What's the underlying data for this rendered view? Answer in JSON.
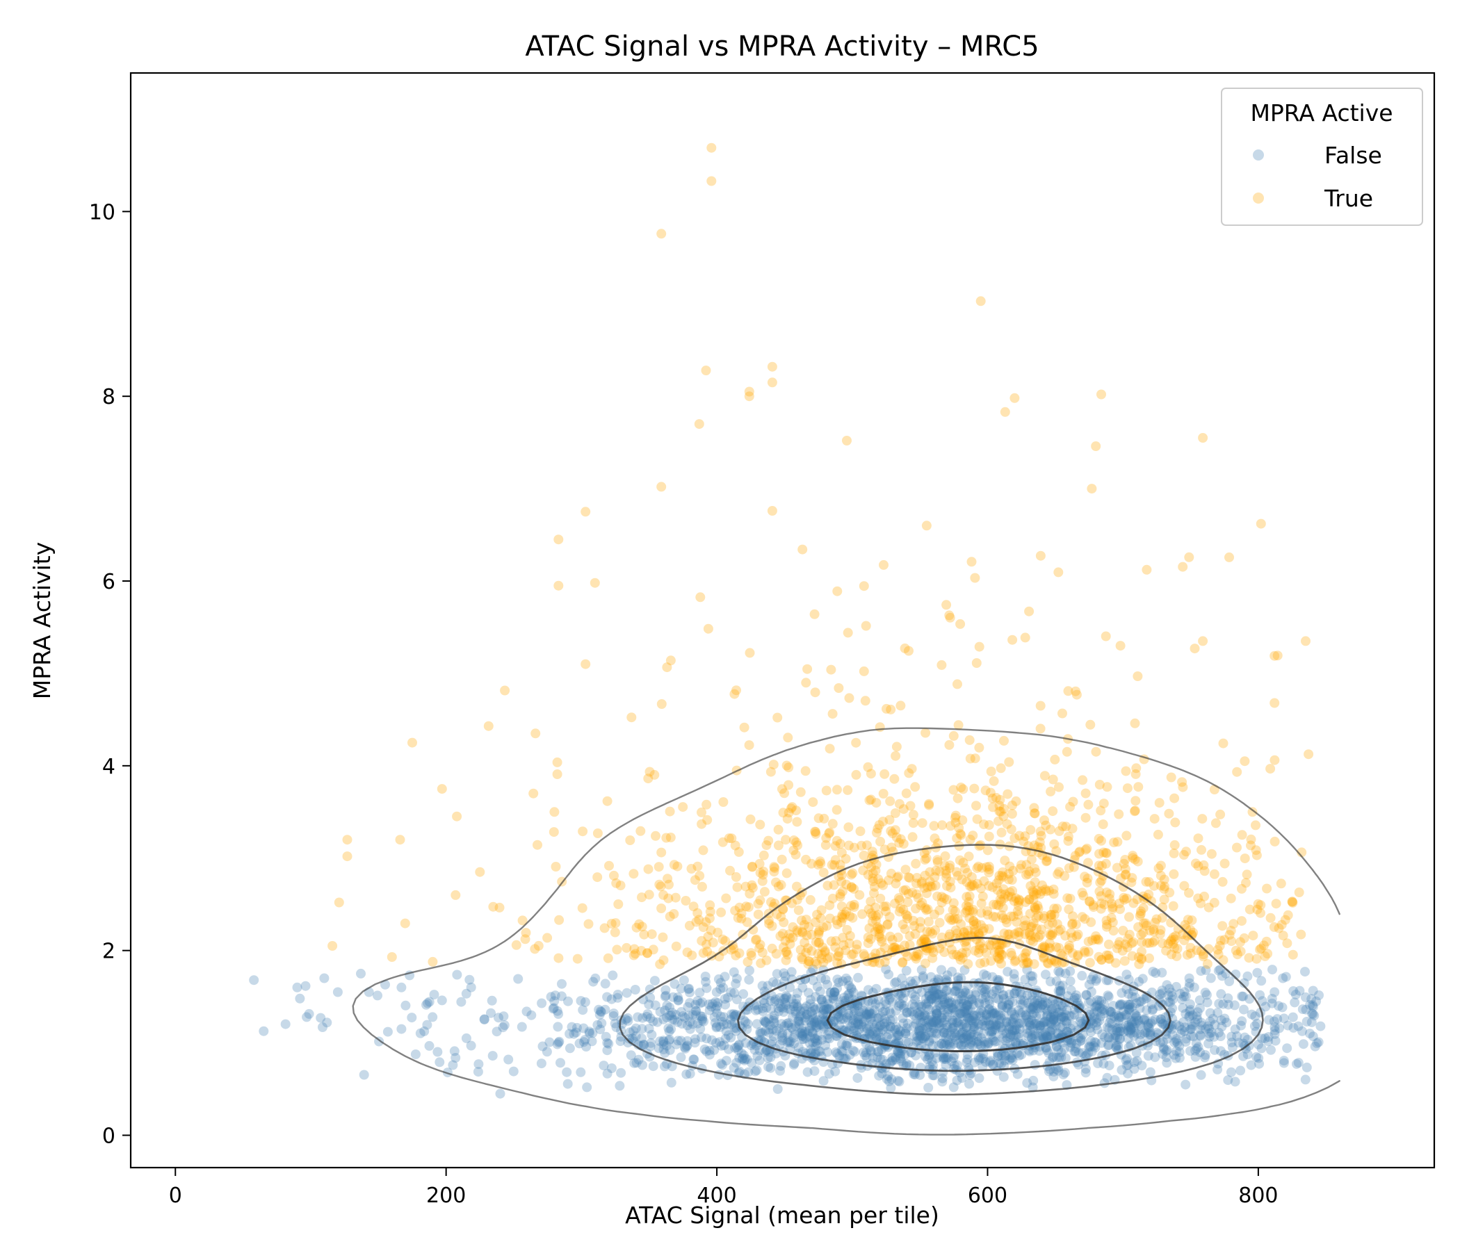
{
  "chart_data": {
    "type": "scatter",
    "title": "ATAC Signal vs MPRA Activity – MRC5",
    "xlabel": "ATAC Signal (mean per tile)",
    "ylabel": "MPRA Activity",
    "xlim": [
      -33,
      930
    ],
    "ylim": [
      -0.35,
      11.5
    ],
    "x_ticks": [
      0,
      200,
      400,
      600,
      800
    ],
    "y_ticks": [
      0,
      2,
      4,
      6,
      8,
      10
    ],
    "grid": false,
    "legend": {
      "title": "MPRA Active",
      "position": "top-right"
    },
    "series": [
      {
        "name": "False",
        "color": "#4682b4",
        "opacity": 0.3,
        "center": [
          580,
          1.2
        ],
        "spread": [
          130,
          0.28
        ],
        "n": 2200,
        "points": [
          [
            58,
            1.68
          ],
          [
            90,
            1.6
          ],
          [
            92,
            1.48
          ],
          [
            97,
            1.28
          ],
          [
            110,
            1.7
          ],
          [
            112,
            1.22
          ],
          [
            120,
            1.55
          ],
          [
            137,
            1.75
          ],
          [
            143,
            1.55
          ],
          [
            155,
            1.63
          ],
          [
            157,
            1.12
          ],
          [
            167,
            1.6
          ],
          [
            167,
            1.15
          ],
          [
            190,
            1.28
          ],
          [
            197,
            1.46
          ],
          [
            205,
            0.76
          ],
          [
            215,
            1.05
          ],
          [
            224,
            0.77
          ],
          [
            240,
            0.45
          ],
          [
            246,
            0.82
          ],
          [
            263,
            1.3
          ],
          [
            304,
            0.52
          ],
          [
            319,
            0.92
          ],
          [
            345,
            0.76
          ],
          [
            408,
            0.65
          ],
          [
            445,
            0.5
          ],
          [
            612,
            0.63
          ],
          [
            666,
            0.79
          ],
          [
            730,
            0.95
          ],
          [
            762,
            1.52
          ],
          [
            790,
            1.06
          ],
          [
            805,
            1.05
          ],
          [
            812,
            1.55
          ],
          [
            815,
            1.4
          ],
          [
            846,
            1.18
          ]
        ]
      },
      {
        "name": "True",
        "color": "#ffa500",
        "opacity": 0.3,
        "center": [
          580,
          2.3
        ],
        "spread": [
          120,
          0.55
        ],
        "n": 1400,
        "points": [
          [
            116,
            2.05
          ],
          [
            121,
            2.52
          ],
          [
            127,
            3.2
          ],
          [
            127,
            3.02
          ],
          [
            160,
            1.93
          ],
          [
            166,
            3.2
          ],
          [
            175,
            4.25
          ],
          [
            197,
            3.75
          ],
          [
            207,
            2.6
          ],
          [
            225,
            2.85
          ],
          [
            266,
            4.35
          ],
          [
            280,
            3.5
          ],
          [
            283,
            6.45
          ],
          [
            283,
            5.95
          ],
          [
            303,
            6.75
          ],
          [
            303,
            5.1
          ],
          [
            310,
            5.98
          ],
          [
            359,
            9.76
          ],
          [
            359,
            7.02
          ],
          [
            366,
            5.14
          ],
          [
            387,
            7.7
          ],
          [
            392,
            8.28
          ],
          [
            396,
            10.69
          ],
          [
            396,
            10.33
          ],
          [
            424,
            8.05
          ],
          [
            424,
            8.0
          ],
          [
            441,
            8.32
          ],
          [
            441,
            8.15
          ],
          [
            441,
            6.76
          ],
          [
            496,
            7.52
          ],
          [
            555,
            6.6
          ],
          [
            595,
            9.03
          ],
          [
            613,
            7.83
          ],
          [
            620,
            7.98
          ],
          [
            677,
            7.0
          ],
          [
            680,
            7.46
          ],
          [
            684,
            8.02
          ],
          [
            759,
            7.55
          ],
          [
            759,
            5.35
          ],
          [
            790,
            4.05
          ],
          [
            802,
            6.62
          ],
          [
            812,
            5.19
          ],
          [
            812,
            4.68
          ],
          [
            835,
            5.35
          ]
        ]
      }
    ],
    "contour_levels": 4
  }
}
